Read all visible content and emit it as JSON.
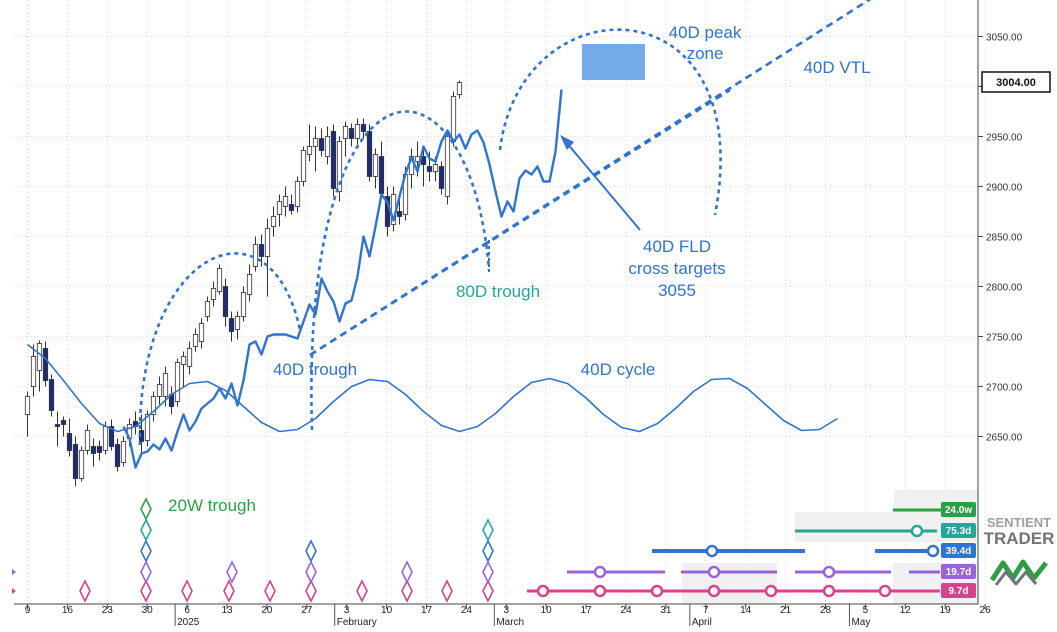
{
  "colors": {
    "background": "#ffffff",
    "grid": "#d9d9d9",
    "cycle_blue": "#2f74d0",
    "annotation_blue": "#2f74d0",
    "annotation_teal": "#26a69a",
    "annotation_green": "#2e9e44",
    "candle_up_fill": "#ffffff",
    "candle_down_fill": "#1c2c78",
    "candle_wick": "#333333",
    "peak_zone_fill": "#5b9be6",
    "marker_green": "#2e9e44",
    "marker_teal": "#26a69a",
    "marker_blue": "#2f74d0",
    "marker_purple": "#9a63d8",
    "marker_pink": "#d6428c",
    "watermark": "#9aa0a6",
    "watermark_green": "#2e9e44"
  },
  "chart_data": {
    "type": "candlestick",
    "y_axis": {
      "ticks": [
        2650.0,
        2700.0,
        2750.0,
        2800.0,
        2850.0,
        2900.0,
        2950.0,
        3000.0,
        3050.0
      ],
      "labels": [
        "2650.00",
        "2700.00",
        "2750.00",
        "2800.00",
        "2850.00",
        "2900.00",
        "2950.00",
        "3000.00",
        "3050.00"
      ],
      "current_price_label": "3004.00",
      "current_price": 3004.0
    },
    "x_axis": {
      "day_labels": [
        "9",
        "16",
        "23",
        "30",
        "6",
        "13",
        "20",
        "27",
        "3",
        "10",
        "17",
        "24",
        "3",
        "10",
        "17",
        "24",
        "31",
        "7",
        "14",
        "21",
        "28",
        "5",
        "12",
        "19",
        "26"
      ],
      "month_labels": [
        "2025",
        "February",
        "March",
        "April",
        "May"
      ]
    },
    "candles": [
      {
        "o": 2672,
        "h": 2695,
        "l": 2650,
        "c": 2690
      },
      {
        "o": 2700,
        "h": 2742,
        "l": 2690,
        "c": 2730
      },
      {
        "o": 2716,
        "h": 2746,
        "l": 2695,
        "c": 2743
      },
      {
        "o": 2738,
        "h": 2745,
        "l": 2700,
        "c": 2706
      },
      {
        "o": 2707,
        "h": 2712,
        "l": 2670,
        "c": 2676
      },
      {
        "o": 2662,
        "h": 2675,
        "l": 2640,
        "c": 2660
      },
      {
        "o": 2666,
        "h": 2670,
        "l": 2650,
        "c": 2662
      },
      {
        "o": 2653,
        "h": 2668,
        "l": 2630,
        "c": 2636
      },
      {
        "o": 2642,
        "h": 2650,
        "l": 2600,
        "c": 2608
      },
      {
        "o": 2608,
        "h": 2640,
        "l": 2605,
        "c": 2636
      },
      {
        "o": 2636,
        "h": 2662,
        "l": 2632,
        "c": 2656
      },
      {
        "o": 2640,
        "h": 2648,
        "l": 2620,
        "c": 2633
      },
      {
        "o": 2640,
        "h": 2646,
        "l": 2626,
        "c": 2634
      },
      {
        "o": 2636,
        "h": 2665,
        "l": 2632,
        "c": 2660
      },
      {
        "o": 2660,
        "h": 2667,
        "l": 2636,
        "c": 2640
      },
      {
        "o": 2642,
        "h": 2648,
        "l": 2615,
        "c": 2620
      },
      {
        "o": 2624,
        "h": 2650,
        "l": 2620,
        "c": 2645
      },
      {
        "o": 2648,
        "h": 2668,
        "l": 2640,
        "c": 2662
      },
      {
        "o": 2665,
        "h": 2675,
        "l": 2652,
        "c": 2660
      },
      {
        "o": 2656,
        "h": 2672,
        "l": 2630,
        "c": 2645
      },
      {
        "o": 2646,
        "h": 2676,
        "l": 2640,
        "c": 2672
      },
      {
        "o": 2672,
        "h": 2695,
        "l": 2665,
        "c": 2690
      },
      {
        "o": 2690,
        "h": 2710,
        "l": 2682,
        "c": 2702
      },
      {
        "o": 2690,
        "h": 2720,
        "l": 2680,
        "c": 2713
      },
      {
        "o": 2692,
        "h": 2700,
        "l": 2672,
        "c": 2680
      },
      {
        "o": 2685,
        "h": 2728,
        "l": 2680,
        "c": 2724
      },
      {
        "o": 2722,
        "h": 2735,
        "l": 2700,
        "c": 2730
      },
      {
        "o": 2720,
        "h": 2745,
        "l": 2712,
        "c": 2738
      },
      {
        "o": 2740,
        "h": 2758,
        "l": 2735,
        "c": 2752
      },
      {
        "o": 2745,
        "h": 2768,
        "l": 2738,
        "c": 2763
      },
      {
        "o": 2770,
        "h": 2790,
        "l": 2765,
        "c": 2785
      },
      {
        "o": 2787,
        "h": 2805,
        "l": 2780,
        "c": 2798
      },
      {
        "o": 2795,
        "h": 2822,
        "l": 2792,
        "c": 2818
      },
      {
        "o": 2800,
        "h": 2808,
        "l": 2760,
        "c": 2770
      },
      {
        "o": 2768,
        "h": 2775,
        "l": 2745,
        "c": 2755
      },
      {
        "o": 2757,
        "h": 2775,
        "l": 2747,
        "c": 2770
      },
      {
        "o": 2770,
        "h": 2800,
        "l": 2765,
        "c": 2794
      },
      {
        "o": 2792,
        "h": 2822,
        "l": 2785,
        "c": 2812
      },
      {
        "o": 2820,
        "h": 2850,
        "l": 2815,
        "c": 2842
      },
      {
        "o": 2842,
        "h": 2852,
        "l": 2820,
        "c": 2830
      },
      {
        "o": 2830,
        "h": 2868,
        "l": 2790,
        "c": 2858
      },
      {
        "o": 2860,
        "h": 2880,
        "l": 2850,
        "c": 2870
      },
      {
        "o": 2872,
        "h": 2892,
        "l": 2860,
        "c": 2885
      },
      {
        "o": 2880,
        "h": 2900,
        "l": 2870,
        "c": 2890
      },
      {
        "o": 2882,
        "h": 2892,
        "l": 2872,
        "c": 2876
      },
      {
        "o": 2880,
        "h": 2910,
        "l": 2874,
        "c": 2905
      },
      {
        "o": 2905,
        "h": 2940,
        "l": 2900,
        "c": 2936
      },
      {
        "o": 2932,
        "h": 2962,
        "l": 2925,
        "c": 2940
      },
      {
        "o": 2940,
        "h": 2960,
        "l": 2915,
        "c": 2948
      },
      {
        "o": 2948,
        "h": 2958,
        "l": 2930,
        "c": 2936
      },
      {
        "o": 2930,
        "h": 2960,
        "l": 2922,
        "c": 2950
      },
      {
        "o": 2955,
        "h": 2962,
        "l": 2890,
        "c": 2898
      },
      {
        "o": 2895,
        "h": 2950,
        "l": 2885,
        "c": 2945
      },
      {
        "o": 2948,
        "h": 2965,
        "l": 2930,
        "c": 2960
      },
      {
        "o": 2958,
        "h": 2963,
        "l": 2940,
        "c": 2948
      },
      {
        "o": 2948,
        "h": 2968,
        "l": 2940,
        "c": 2962
      },
      {
        "o": 2962,
        "h": 2968,
        "l": 2948,
        "c": 2955
      },
      {
        "o": 2955,
        "h": 2962,
        "l": 2905,
        "c": 2910
      },
      {
        "o": 2910,
        "h": 2938,
        "l": 2898,
        "c": 2932
      },
      {
        "o": 2930,
        "h": 2945,
        "l": 2890,
        "c": 2893
      },
      {
        "o": 2890,
        "h": 2900,
        "l": 2850,
        "c": 2860
      },
      {
        "o": 2862,
        "h": 2900,
        "l": 2855,
        "c": 2892
      },
      {
        "o": 2875,
        "h": 2888,
        "l": 2862,
        "c": 2870
      },
      {
        "o": 2872,
        "h": 2920,
        "l": 2866,
        "c": 2912
      },
      {
        "o": 2912,
        "h": 2938,
        "l": 2898,
        "c": 2930
      },
      {
        "o": 2925,
        "h": 2945,
        "l": 2910,
        "c": 2930
      },
      {
        "o": 2930,
        "h": 2940,
        "l": 2900,
        "c": 2922
      },
      {
        "o": 2920,
        "h": 2935,
        "l": 2905,
        "c": 2915
      },
      {
        "o": 2915,
        "h": 2930,
        "l": 2905,
        "c": 2922
      },
      {
        "o": 2920,
        "h": 2925,
        "l": 2892,
        "c": 2898
      },
      {
        "o": 2890,
        "h": 2955,
        "l": 2882,
        "c": 2950
      },
      {
        "o": 2945,
        "h": 2995,
        "l": 2940,
        "c": 2990
      },
      {
        "o": 2992,
        "h": 3006,
        "l": 2988,
        "c": 3004
      }
    ],
    "series": [
      {
        "name": "40D cycle",
        "points": [
          [
            0,
            2742
          ],
          [
            3,
            2728
          ],
          [
            6,
            2706
          ],
          [
            9,
            2683
          ],
          [
            12,
            2663
          ],
          [
            15,
            2655
          ],
          [
            18,
            2660
          ],
          [
            21,
            2675
          ],
          [
            24,
            2692
          ],
          [
            27,
            2703
          ],
          [
            30,
            2705
          ],
          [
            33,
            2696
          ],
          [
            36,
            2680
          ],
          [
            39,
            2664
          ],
          [
            42,
            2655
          ],
          [
            45,
            2657
          ],
          [
            48,
            2668
          ],
          [
            51,
            2685
          ],
          [
            54,
            2700
          ],
          [
            57,
            2707
          ],
          [
            60,
            2705
          ],
          [
            63,
            2692
          ],
          [
            66,
            2675
          ],
          [
            69,
            2661
          ],
          [
            72,
            2655
          ],
          [
            75,
            2660
          ],
          [
            78,
            2673
          ],
          [
            81,
            2690
          ],
          [
            84,
            2704
          ],
          [
            87,
            2708
          ],
          [
            90,
            2703
          ],
          [
            93,
            2689
          ],
          [
            96,
            2672
          ],
          [
            99,
            2659
          ],
          [
            102,
            2655
          ],
          [
            105,
            2663
          ],
          [
            108,
            2678
          ],
          [
            111,
            2695
          ],
          [
            114,
            2707
          ],
          [
            117,
            2708
          ],
          [
            120,
            2698
          ],
          [
            123,
            2682
          ],
          [
            126,
            2666
          ],
          [
            129,
            2656
          ],
          [
            132,
            2657
          ],
          [
            135,
            2668
          ]
        ]
      },
      {
        "name": "FLD",
        "points": [
          [
            16,
            2660
          ],
          [
            17,
            2648
          ],
          [
            18,
            2619
          ],
          [
            19,
            2633
          ],
          [
            20,
            2635
          ],
          [
            21,
            2642
          ],
          [
            22,
            2637
          ],
          [
            23,
            2648
          ],
          [
            24,
            2636
          ],
          [
            25,
            2655
          ],
          [
            26,
            2672
          ],
          [
            27,
            2656
          ],
          [
            28,
            2665
          ],
          [
            29,
            2678
          ],
          [
            31,
            2688
          ],
          [
            32,
            2698
          ],
          [
            33,
            2688
          ],
          [
            34,
            2703
          ],
          [
            35,
            2681
          ],
          [
            36,
            2706
          ],
          [
            37,
            2742
          ],
          [
            38,
            2745
          ],
          [
            39,
            2732
          ],
          [
            40,
            2750
          ],
          [
            41,
            2752
          ],
          [
            43,
            2752
          ],
          [
            45,
            2748
          ],
          [
            46,
            2765
          ],
          [
            47,
            2782
          ],
          [
            48,
            2772
          ],
          [
            49,
            2808
          ],
          [
            50,
            2795
          ],
          [
            51,
            2785
          ],
          [
            52,
            2765
          ],
          [
            53,
            2783
          ],
          [
            54,
            2786
          ],
          [
            55,
            2810
          ],
          [
            56,
            2850
          ],
          [
            57,
            2830
          ],
          [
            58,
            2860
          ],
          [
            59,
            2892
          ],
          [
            60,
            2884
          ],
          [
            61,
            2866
          ],
          [
            62,
            2890
          ],
          [
            63,
            2913
          ],
          [
            64,
            2929
          ],
          [
            65,
            2915
          ],
          [
            66,
            2940
          ],
          [
            67,
            2928
          ],
          [
            68,
            2925
          ],
          [
            69,
            2945
          ],
          [
            70,
            2956
          ],
          [
            71,
            2945
          ],
          [
            72,
            2952
          ],
          [
            73,
            2938
          ],
          [
            74,
            2952
          ],
          [
            75,
            2956
          ],
          [
            76,
            2944
          ],
          [
            77,
            2922
          ],
          [
            78,
            2895
          ],
          [
            79,
            2870
          ],
          [
            80,
            2885
          ],
          [
            81,
            2875
          ],
          [
            82,
            2908
          ],
          [
            83,
            2916
          ],
          [
            84,
            2912
          ],
          [
            85,
            2920
          ],
          [
            86,
            2905
          ],
          [
            87,
            2905
          ],
          [
            88,
            2935
          ],
          [
            89,
            2997
          ]
        ]
      }
    ],
    "annotations": [
      "40D peak zone",
      "40D VTL",
      "40D FLD cross targets 3055",
      "80D trough",
      "40D trough",
      "40D cycle",
      "20W trough"
    ],
    "legend": [
      "24.0w",
      "75.3d",
      "39.4d",
      "19.7d",
      "9.7d"
    ],
    "watermark": [
      "SENTIENT",
      "TRADER"
    ]
  }
}
